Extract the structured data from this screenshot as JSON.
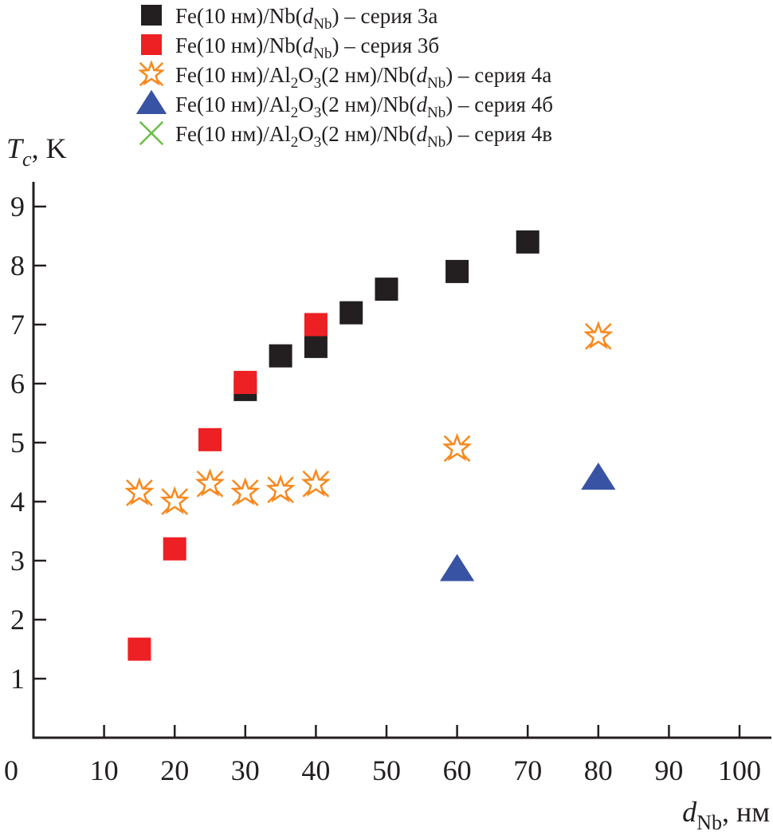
{
  "chart_data": {
    "type": "scatter",
    "title": "",
    "xlabel": {
      "main": "d",
      "sub": "Nb",
      "unit": ", нм"
    },
    "ylabel": {
      "main": "T",
      "sub": "c",
      "unit": ", K"
    },
    "xlim": [
      0,
      105
    ],
    "ylim": [
      0,
      9.5
    ],
    "xticks": [
      0,
      10,
      20,
      30,
      40,
      50,
      60,
      70,
      80,
      90,
      100
    ],
    "xtick_labels": [
      "0",
      "10",
      "20",
      "30",
      "40",
      "50",
      "60",
      "70",
      "80",
      "90",
      "100"
    ],
    "yticks": [
      1,
      2,
      3,
      4,
      5,
      6,
      7,
      8,
      9
    ],
    "ytick_labels": [
      "1",
      "2",
      "3",
      "4",
      "5",
      "6",
      "7",
      "8",
      "9"
    ],
    "grid": false,
    "legend_position": "top",
    "series": [
      {
        "name": "Fe(10 нм)/Nb(dNb) – серия 3а",
        "label_parts": [
          "Fe(10 нм)/Nb(",
          "d",
          "Nb",
          ") – серия 3а"
        ],
        "marker": "square",
        "color": "#231f20",
        "points": [
          [
            30,
            5.9
          ],
          [
            35,
            6.47
          ],
          [
            40,
            6.63
          ],
          [
            45,
            7.2
          ],
          [
            50,
            7.6
          ],
          [
            60,
            7.9
          ],
          [
            70,
            8.4
          ]
        ]
      },
      {
        "name": "Fe(10 нм)/Nb(dNb) – серия 3б",
        "label_parts": [
          "Fe(10 нм)/Nb(",
          "d",
          "Nb",
          ") – серия 3б"
        ],
        "marker": "square",
        "color": "#ed2024",
        "points": [
          [
            15,
            1.5
          ],
          [
            20,
            3.2
          ],
          [
            25,
            5.05
          ],
          [
            30,
            6.02
          ],
          [
            40,
            7.0
          ]
        ]
      },
      {
        "name": "Fe(10 нм)/Al2O3(2 нм)/Nb(dNb) – серия 4а",
        "label_parts": [
          "Fe(10 нм)/Al",
          "2",
          "O",
          "3",
          "(2 нм)/Nb(",
          "d",
          "Nb",
          ") – серия 4а"
        ],
        "marker": "star-cross",
        "color": "#f7891f",
        "points": [
          [
            15,
            4.15
          ],
          [
            20,
            4.0
          ],
          [
            25,
            4.3
          ],
          [
            30,
            4.15
          ],
          [
            35,
            4.2
          ],
          [
            40,
            4.3
          ],
          [
            60,
            4.9
          ],
          [
            80,
            6.8
          ]
        ]
      },
      {
        "name": "Fe(10 нм)/Al2O3(2 нм)/Nb(dNb) – серия 4б",
        "label_parts": [
          "Fe(10 нм)/Al",
          "2",
          "O",
          "3",
          "(2 нм)/Nb(",
          "d",
          "Nb",
          ") – серия 4б"
        ],
        "marker": "triangle",
        "color": "#3953a4",
        "points": [
          [
            60,
            2.85
          ],
          [
            80,
            4.4
          ]
        ]
      },
      {
        "name": "Fe(10 нм)/Al2O3(2 нм)/Nb(dNb) – серия 4в",
        "label_parts": [
          "Fe(10 нм)/Al",
          "2",
          "O",
          "3",
          "(2 нм)/Nb(",
          "d",
          "Nb",
          ") – серия 4в"
        ],
        "marker": "cross",
        "color": "#6abd45",
        "points": []
      }
    ]
  }
}
